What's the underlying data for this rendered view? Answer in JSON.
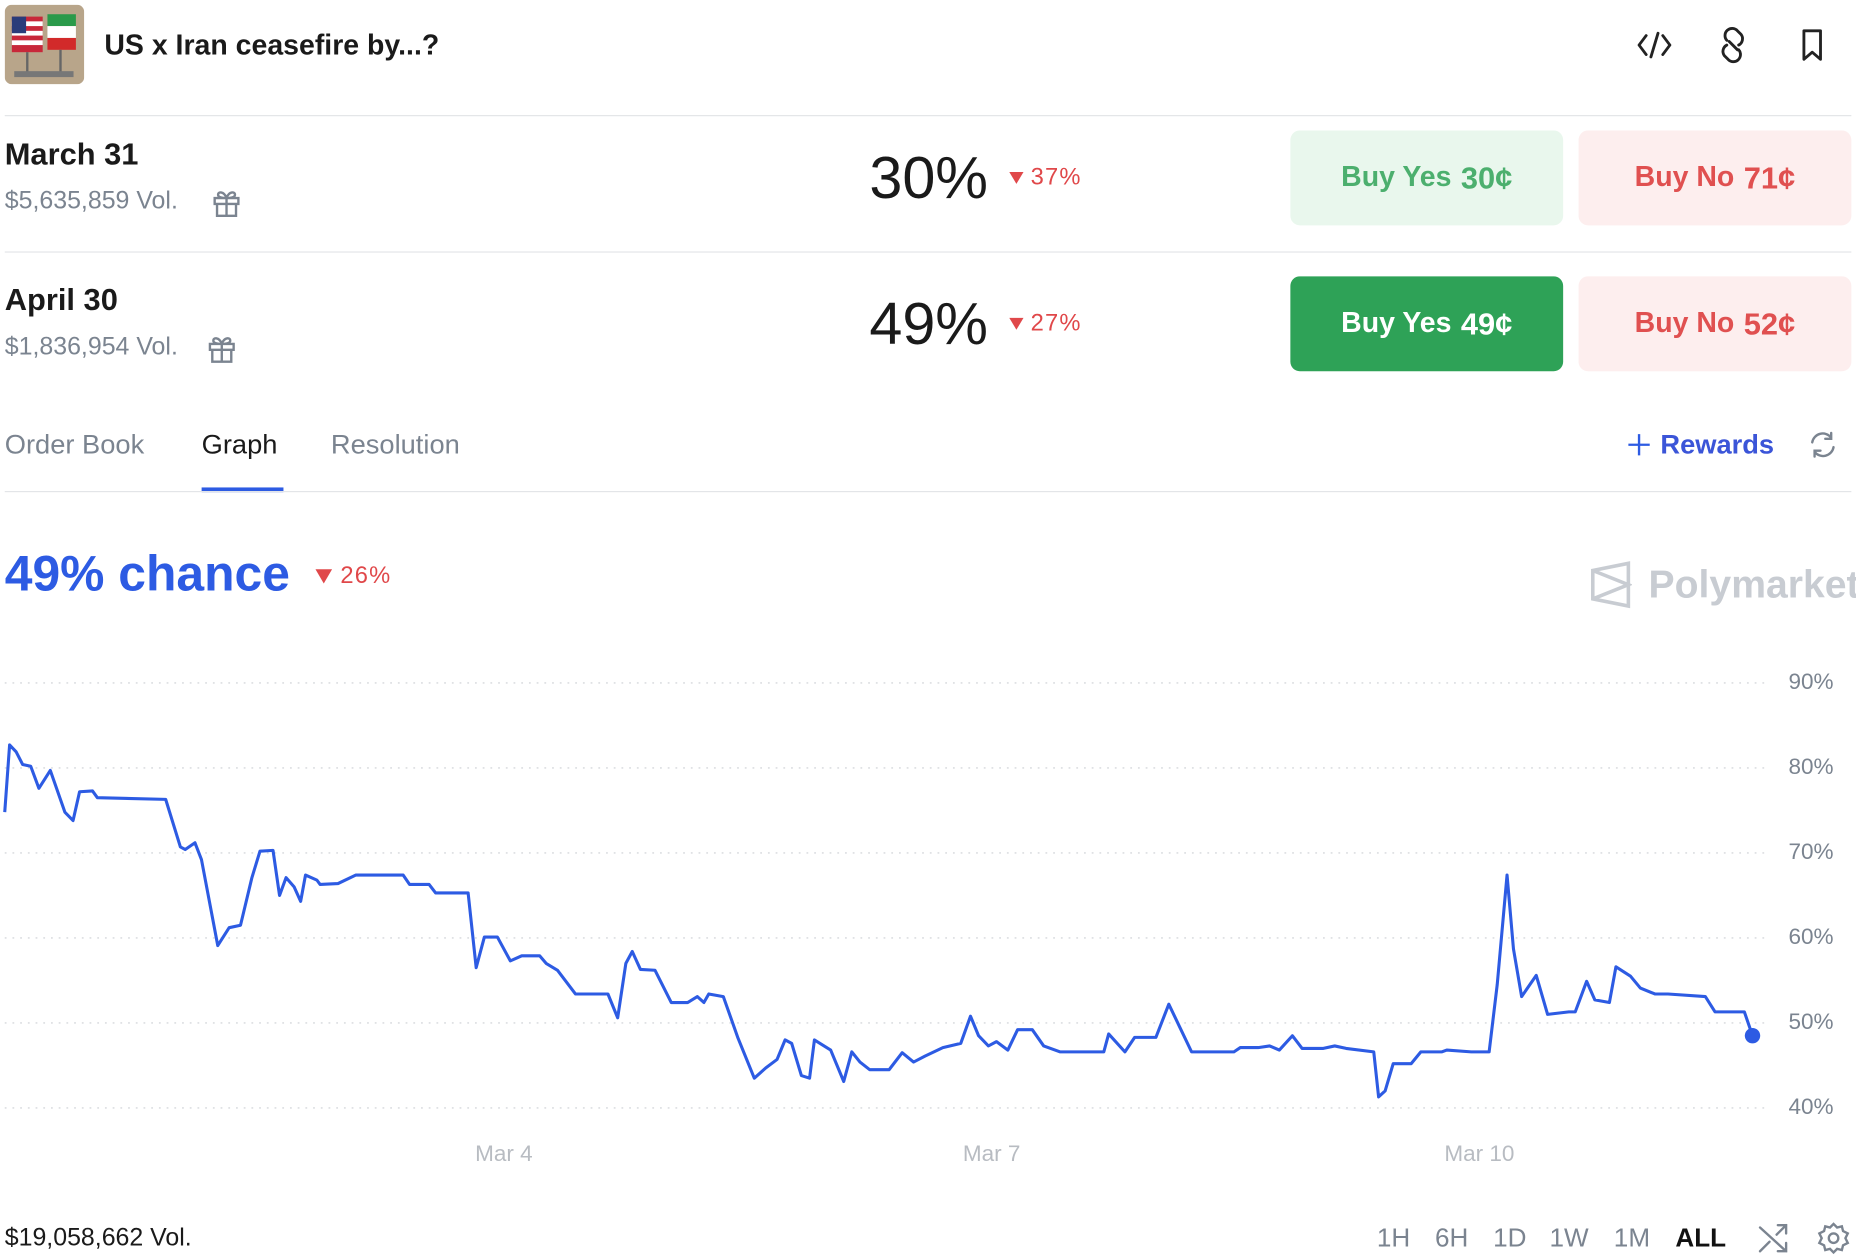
{
  "header": {
    "title": "US x Iran ceasefire by...?"
  },
  "markets": [
    {
      "date": "March 31",
      "volume": "$5,635,859 Vol.",
      "price": "30%",
      "change": "37%",
      "yes_label": "Buy Yes",
      "yes_price": "30¢",
      "no_label": "Buy No",
      "no_price": "71¢"
    },
    {
      "date": "April 30",
      "volume": "$1,836,954 Vol.",
      "price": "49%",
      "change": "27%",
      "yes_label": "Buy Yes",
      "yes_price": "49¢",
      "no_label": "Buy No",
      "no_price": "52¢"
    }
  ],
  "tabs": [
    "Order Book",
    "Graph",
    "Resolution"
  ],
  "rewards": "Rewards",
  "chance": {
    "label": "49% chance",
    "change": "26%"
  },
  "watermark": "Polymarket",
  "chart_data": {
    "type": "line",
    "color": "#2d5be3",
    "x": [
      0.93,
      0.96,
      1.0,
      1.04,
      1.09,
      1.14,
      1.21,
      1.3,
      1.35,
      1.39,
      1.47,
      1.5,
      1.92,
      2.01,
      2.04,
      2.1,
      2.14,
      2.24,
      2.31,
      2.38,
      2.45,
      2.5,
      2.58,
      2.62,
      2.66,
      2.71,
      2.75,
      2.78,
      2.85,
      2.87,
      2.98,
      3.09,
      3.38,
      3.42,
      3.54,
      3.58,
      3.78,
      3.83,
      3.88,
      3.96,
      4.04,
      4.11,
      4.22,
      4.26,
      4.33,
      4.44,
      4.64,
      4.7,
      4.75,
      4.79,
      4.84,
      4.93,
      5.03,
      5.13,
      5.19,
      5.23,
      5.26,
      5.35,
      5.44,
      5.54,
      5.61,
      5.68,
      5.73,
      5.77,
      5.83,
      5.88,
      5.91,
      6.01,
      6.09,
      6.14,
      6.19,
      6.25,
      6.37,
      6.45,
      6.52,
      6.59,
      6.7,
      6.81,
      6.87,
      6.92,
      6.98,
      7.03,
      7.1,
      7.16,
      7.25,
      7.32,
      7.42,
      7.69,
      7.72,
      7.82,
      7.88,
      8.01,
      8.09,
      8.16,
      8.23,
      8.49,
      8.53,
      8.64,
      8.71,
      8.77,
      8.85,
      8.91,
      9.04,
      9.11,
      9.18,
      9.35,
      9.38,
      9.42,
      9.47,
      9.58,
      9.64,
      9.77,
      9.8,
      9.95,
      10.06,
      10.11,
      10.17,
      10.21,
      10.26,
      10.35,
      10.42,
      10.55,
      10.59,
      10.66,
      10.71,
      10.8,
      10.84,
      10.93,
      10.99,
      11.08,
      11.16,
      11.39,
      11.45,
      11.63,
      11.68
    ],
    "values": [
      74.8,
      82.7,
      81.9,
      80.4,
      80.2,
      77.6,
      79.7,
      74.8,
      73.8,
      77.2,
      77.3,
      76.5,
      76.3,
      70.7,
      70.4,
      71.2,
      69.2,
      59.1,
      61.2,
      61.5,
      67.1,
      70.2,
      70.3,
      65.0,
      67.1,
      66.0,
      64.3,
      67.4,
      66.8,
      66.3,
      66.4,
      67.4,
      67.4,
      66.3,
      66.3,
      65.3,
      65.3,
      56.5,
      60.1,
      60.1,
      57.3,
      57.9,
      57.9,
      57.0,
      56.2,
      53.4,
      53.4,
      50.6,
      57.0,
      58.4,
      56.3,
      56.2,
      52.4,
      52.4,
      53.1,
      52.4,
      53.4,
      53.1,
      48.2,
      43.5,
      44.7,
      45.7,
      48.0,
      47.6,
      43.8,
      43.5,
      48.0,
      46.8,
      43.1,
      46.6,
      45.4,
      44.5,
      44.5,
      46.5,
      45.4,
      46.1,
      47.1,
      47.6,
      50.8,
      48.5,
      47.3,
      47.8,
      46.8,
      49.2,
      49.2,
      47.3,
      46.6,
      46.6,
      48.7,
      46.6,
      48.3,
      48.3,
      52.2,
      49.4,
      46.6,
      46.6,
      47.1,
      47.1,
      47.3,
      46.8,
      48.5,
      47.0,
      47.0,
      47.3,
      47.0,
      46.6,
      41.3,
      42.0,
      45.2,
      45.2,
      46.6,
      46.6,
      46.8,
      46.6,
      46.6,
      54.5,
      67.4,
      58.7,
      53.1,
      55.6,
      51.0,
      51.3,
      51.3,
      54.9,
      52.7,
      52.4,
      56.6,
      55.5,
      54.1,
      53.4,
      53.4,
      53.1,
      51.3,
      51.3,
      48.5
    ],
    "xlim": [
      0.93,
      11.77
    ],
    "xticks": [
      {
        "value": 4,
        "label": "Mar 4"
      },
      {
        "value": 7,
        "label": "Mar 7"
      },
      {
        "value": 10,
        "label": "Mar 10"
      }
    ],
    "ylim": [
      35,
      95
    ],
    "yticks": [
      {
        "value": 40,
        "label": "40%"
      },
      {
        "value": 50,
        "label": "50%"
      },
      {
        "value": 60,
        "label": "60%"
      },
      {
        "value": 70,
        "label": "70%"
      },
      {
        "value": 80,
        "label": "80%"
      },
      {
        "value": 90,
        "label": "90%"
      }
    ],
    "grid": true
  },
  "footer": {
    "volume": "$19,058,662 Vol.",
    "ranges": [
      "1H",
      "6H",
      "1D",
      "1W",
      "1M",
      "ALL"
    ]
  }
}
